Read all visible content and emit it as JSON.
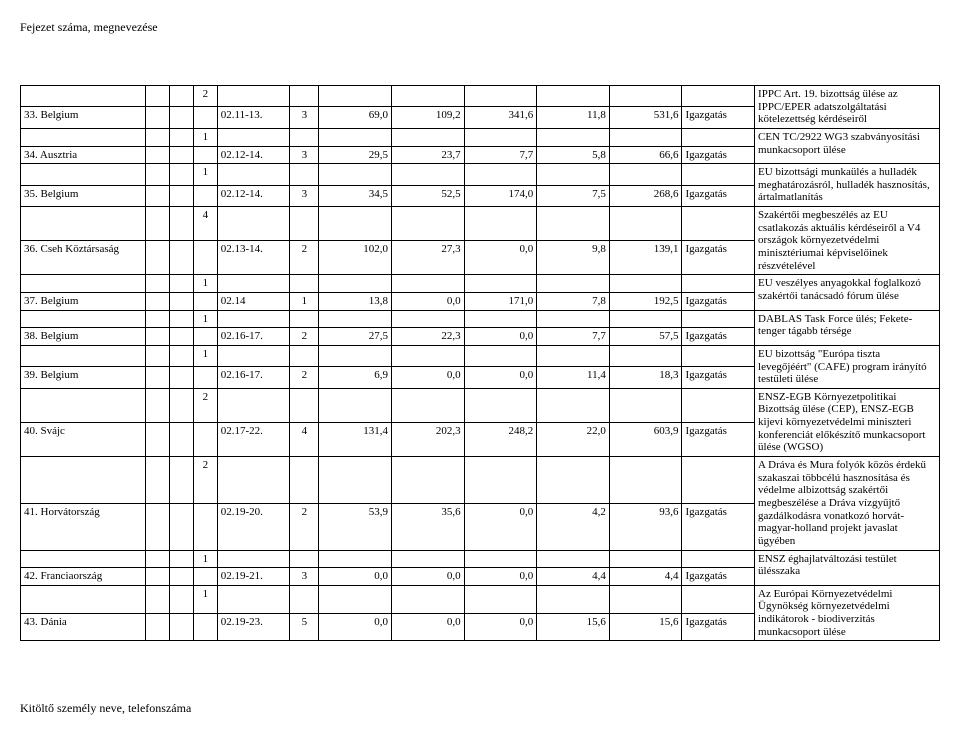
{
  "header": "Fejezet száma, megnevezése",
  "footer": "Kitöltő személy neve, telefonszáma",
  "rows": [
    {
      "label": "33. Belgium",
      "preval": "2",
      "code": "02.11-13.",
      "p": "3",
      "v1": "69,0",
      "v2": "109,2",
      "v3": "341,6",
      "v4": "11,8",
      "v5": "531,6",
      "type": "Igazgatás",
      "desc": "IPPC Art. 19. bizottság ülése az IPPC/EPER adatszolgáltatási kötelezettség kérdéseiről"
    },
    {
      "label": "34. Ausztria",
      "preval": "1",
      "code": "02.12-14.",
      "p": "3",
      "v1": "29,5",
      "v2": "23,7",
      "v3": "7,7",
      "v4": "5,8",
      "v5": "66,6",
      "type": "Igazgatás",
      "desc": "CEN TC/2922 WG3 szabványosítási munkacsoport ülése"
    },
    {
      "label": "35. Belgium",
      "preval": "1",
      "code": "02.12-14.",
      "p": "3",
      "v1": "34,5",
      "v2": "52,5",
      "v3": "174,0",
      "v4": "7,5",
      "v5": "268,6",
      "type": "Igazgatás",
      "desc": "EU bizottsági munkaülés a hulladék meghatározásról, hulladék hasznosítás, ártalmatlanítás"
    },
    {
      "label": "36. Cseh Köztársaság",
      "preval": "4",
      "code": "02.13-14.",
      "p": "2",
      "v1": "102,0",
      "v2": "27,3",
      "v3": "0,0",
      "v4": "9,8",
      "v5": "139,1",
      "type": "Igazgatás",
      "desc": "Szakértői megbeszélés az EU csatlakozás aktuális kérdéseiről a V4 országok környezetvédelmi minisztériumai képviselőinek részvételével"
    },
    {
      "label": "37. Belgium",
      "preval": "1",
      "code": "02.14",
      "p": "1",
      "v1": "13,8",
      "v2": "0,0",
      "v3": "171,0",
      "v4": "7,8",
      "v5": "192,5",
      "type": "Igazgatás",
      "desc": "EU veszélyes anyagokkal foglalkozó szakértői tanácsadó fórum ülése"
    },
    {
      "label": "38. Belgium",
      "preval": "1",
      "code": "02.16-17.",
      "p": "2",
      "v1": "27,5",
      "v2": "22,3",
      "v3": "0,0",
      "v4": "7,7",
      "v5": "57,5",
      "type": "Igazgatás",
      "desc": "DABLAS Task Force ülés; Fekete-tenger tágabb térsége"
    },
    {
      "label": "39. Belgium",
      "preval": "1",
      "code": "02.16-17.",
      "p": "2",
      "v1": "6,9",
      "v2": "0,0",
      "v3": "0,0",
      "v4": "11,4",
      "v5": "18,3",
      "type": "Igazgatás",
      "desc": "EU bizottság \"Európa tiszta levegőjéért\" (CAFE) program irányító testületi ülése"
    },
    {
      "label": "40. Svájc",
      "preval": "2",
      "code": "02.17-22.",
      "p": "4",
      "v1": "131,4",
      "v2": "202,3",
      "v3": "248,2",
      "v4": "22,0",
      "v5": "603,9",
      "type": "Igazgatás",
      "desc": "ENSZ-EGB Környezetpolitikai Bizottság ülése (CEP), ENSZ-EGB kijevi környezetvédelmi miniszteri konferenciát előkészítő munkacsoport ülése (WGSO)"
    },
    {
      "label": "41. Horvátország",
      "preval": "2",
      "code": "02.19-20.",
      "p": "2",
      "v1": "53,9",
      "v2": "35,6",
      "v3": "0,0",
      "v4": "4,2",
      "v5": "93,6",
      "type": "Igazgatás",
      "desc": "A Dráva és Mura folyók közös érdekű szakaszai többcélú hasznosítása és védelme albizottság szakértői megbeszélése a Dráva vízgyűjtő gazdálkodásra vonatkozó horvát-magyar-holland projekt javaslat ügyében"
    },
    {
      "label": "42. Franciaország",
      "preval": "1",
      "code": "02.19-21.",
      "p": "3",
      "v1": "0,0",
      "v2": "0,0",
      "v3": "0,0",
      "v4": "4,4",
      "v5": "4,4",
      "type": "Igazgatás",
      "desc": "ENSZ éghajlatváltozási testület ülésszaka"
    },
    {
      "label": "43. Dánia",
      "preval": "1",
      "code": "02.19-23.",
      "p": "5",
      "v1": "0,0",
      "v2": "0,0",
      "v3": "0,0",
      "v4": "15,6",
      "v5": "15,6",
      "type": "Igazgatás",
      "desc": "Az Európai Környezetvédelmi Ügynökség környezetvédelmi indikátorok - biodiverzitás munkacsoport ülése"
    }
  ]
}
